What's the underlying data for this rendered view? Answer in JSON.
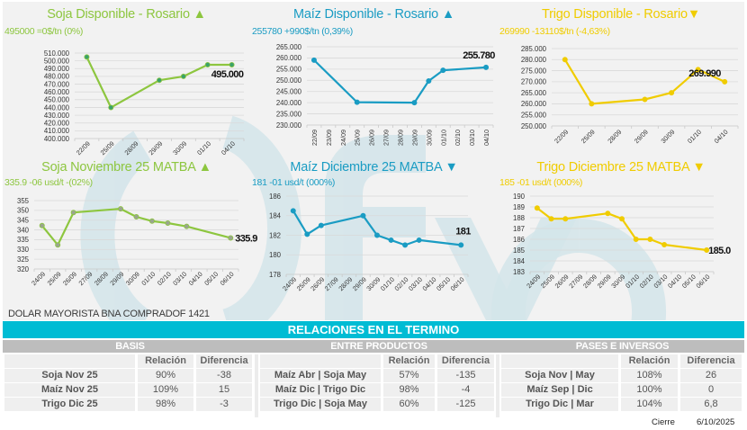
{
  "colors": {
    "soja": "#8dc63f",
    "maiz": "#1a9cc3",
    "trigo": "#f0cc00",
    "banner": "#00bcd4",
    "subheader": "#bdbdbd",
    "watermark": "#cfe3e8"
  },
  "watermark_text": "()fyo",
  "chart_data": [
    {
      "id": "soja-disp",
      "type": "line",
      "title": "Soja Disponible - Rosario ▲",
      "subtitle": "495000 =0$/tn (0%)",
      "color_key": "soja",
      "categories": [
        "22/09",
        "25/09",
        "28/09",
        "29/09",
        "30/09",
        "01/10",
        "04/10"
      ],
      "tick_labels": [
        "22/09",
        "25/09",
        "28/09",
        "29/09",
        "30/09",
        "01/10",
        "04/10"
      ],
      "values": [
        505000,
        440000,
        null,
        475000,
        480000,
        495000,
        495000
      ],
      "ylim": [
        400000,
        510000
      ],
      "yticks": [
        400000,
        410000,
        420000,
        430000,
        440000,
        450000,
        460000,
        470000,
        480000,
        490000,
        500000,
        510000
      ],
      "ytick_labels": [
        "400.000",
        "410.000",
        "420.000",
        "430.000",
        "440.000",
        "450.000",
        "460.000",
        "470.000",
        "480.000",
        "490.000",
        "500.000",
        "510.000"
      ],
      "data_label": "495.000",
      "xlabel": "",
      "ylabel": "",
      "grid": true
    },
    {
      "id": "maiz-disp",
      "type": "line",
      "title": "Maíz Disponible - Rosario ▲",
      "subtitle": "255780 +990$/tn (0,39%)",
      "color_key": "maiz",
      "categories": [
        "22/09",
        "23/09",
        "24/09",
        "25/09",
        "26/09",
        "27/09",
        "28/09",
        "29/09",
        "30/09",
        "01/10",
        "02/10",
        "03/10",
        "04/10"
      ],
      "tick_labels": [
        "22/09",
        "23/09",
        "24/09",
        "25/09",
        "26/09",
        "27/09",
        "28/09",
        "29/09",
        "30/09",
        "01/10",
        "02/10",
        "03/10",
        "04/10"
      ],
      "values": [
        259000,
        null,
        null,
        240200,
        null,
        null,
        null,
        240000,
        249700,
        254500,
        null,
        null,
        255780
      ],
      "ylim": [
        230000,
        265000
      ],
      "yticks": [
        230000,
        235000,
        240000,
        245000,
        250000,
        255000,
        260000,
        265000
      ],
      "ytick_labels": [
        "230.000",
        "235.000",
        "240.000",
        "245.000",
        "250.000",
        "255.000",
        "260.000",
        "265.000"
      ],
      "data_label": "255.780",
      "xlabel": "",
      "ylabel": "",
      "grid": true
    },
    {
      "id": "trigo-disp",
      "type": "line",
      "title": "Trigo Disponible - Rosario▼",
      "subtitle": "269990 -13110$/tn (-4,63%)",
      "color_key": "trigo",
      "categories": [
        "22/09",
        "25/09",
        "28/09",
        "29/09",
        "30/09",
        "01/10",
        "04/10"
      ],
      "tick_labels": [
        "22/09",
        "25/09",
        "28/09",
        "29/09",
        "30/09",
        "01/10",
        "04/10"
      ],
      "values": [
        280000,
        260000,
        null,
        262000,
        265000,
        275500,
        270000
      ],
      "ylim": [
        250000,
        285000
      ],
      "yticks": [
        250000,
        255000,
        260000,
        265000,
        270000,
        275000,
        280000,
        285000
      ],
      "ytick_labels": [
        "250.000",
        "255.000",
        "260.000",
        "265.000",
        "270.000",
        "275.000",
        "280.000",
        "285.000"
      ],
      "data_label": "269.990",
      "xlabel": "",
      "ylabel": "",
      "grid": true
    },
    {
      "id": "soja-matba",
      "type": "line",
      "title": "Soja Noviembre 25 MATBA ▲",
      "subtitle": "335.9 -06 usd/t -(02%)",
      "color_key": "soja",
      "categories": [
        "24/09",
        "25/09",
        "26/09",
        "27/09",
        "28/09",
        "29/09",
        "30/09",
        "01/10",
        "02/10",
        "03/10",
        "04/10",
        "05/10",
        "06/10"
      ],
      "tick_labels": [
        "24/09",
        "25/09",
        "26/09",
        "27/09",
        "28/09",
        "29/09",
        "30/09",
        "01/10",
        "02/10",
        "03/10",
        "04/10",
        "05/10",
        "06/10"
      ],
      "points": [
        {
          "x": 0,
          "y": 342.2
        },
        {
          "x": 1,
          "y": 332.3
        },
        {
          "x": 2,
          "y": 348.9
        },
        {
          "x": 5,
          "y": 350.8
        },
        {
          "x": 6,
          "y": 346.7
        },
        {
          "x": 7,
          "y": 344.5
        },
        {
          "x": 8,
          "y": 343.5
        },
        {
          "x": 9.2,
          "y": 341.8
        },
        {
          "x": 12,
          "y": 335.9
        }
      ],
      "ylim": [
        320,
        355
      ],
      "yticks": [
        320,
        325,
        330,
        335,
        340,
        345,
        350,
        355
      ],
      "ytick_labels": [
        "320",
        "325",
        "330",
        "335",
        "340",
        "345",
        "350",
        "355"
      ],
      "data_label": "335.9",
      "xlabel": "",
      "ylabel": "",
      "grid": true
    },
    {
      "id": "maiz-matba",
      "type": "line",
      "title": "Maíz Diciembre 25 MATBA ▼",
      "subtitle": "181 -01 usd/t (000%)",
      "color_key": "maiz",
      "categories": [
        "24/09",
        "25/09",
        "26/09",
        "27/09",
        "28/09",
        "29/09",
        "30/09",
        "01/10",
        "02/10",
        "03/10",
        "04/10",
        "05/10",
        "06/10"
      ],
      "tick_labels": [
        "24/09",
        "25/09",
        "26/09",
        "27/09",
        "28/09",
        "29/09",
        "30/09",
        "01/10",
        "02/10",
        "03/10",
        "04/10",
        "05/10",
        "06/10"
      ],
      "points": [
        {
          "x": 0,
          "y": 184.5
        },
        {
          "x": 1,
          "y": 182.1
        },
        {
          "x": 2,
          "y": 183.0
        },
        {
          "x": 5,
          "y": 184.0
        },
        {
          "x": 6,
          "y": 182.0
        },
        {
          "x": 7,
          "y": 181.5
        },
        {
          "x": 8,
          "y": 181.0
        },
        {
          "x": 9,
          "y": 181.5
        },
        {
          "x": 12,
          "y": 181.0
        }
      ],
      "ylim": [
        178,
        186
      ],
      "yticks": [
        178,
        180,
        182,
        184,
        186
      ],
      "ytick_labels": [
        "178",
        "180",
        "182",
        "184",
        "186"
      ],
      "data_label": "181",
      "xlabel": "",
      "ylabel": "",
      "grid": true
    },
    {
      "id": "trigo-matba",
      "type": "line",
      "title": "Trigo Diciembre 25 MATBA ▼",
      "subtitle": "185 -01 usd/t (000%)",
      "color_key": "trigo",
      "categories": [
        "24/09",
        "25/09",
        "26/09",
        "27/09",
        "28/09",
        "29/09",
        "30/09",
        "01/10",
        "02/10",
        "03/10",
        "04/10",
        "05/10",
        "06/10"
      ],
      "tick_labels": [
        "24/09",
        "25/09",
        "26/09",
        "27/09",
        "28/09",
        "29/09",
        "30/09",
        "01/10",
        "02/10",
        "03/10",
        "04/10",
        "05/10",
        "06/10"
      ],
      "points": [
        {
          "x": 0,
          "y": 188.9
        },
        {
          "x": 1,
          "y": 187.9
        },
        {
          "x": 2,
          "y": 187.9
        },
        {
          "x": 5,
          "y": 188.4
        },
        {
          "x": 6,
          "y": 187.9
        },
        {
          "x": 7,
          "y": 186.0
        },
        {
          "x": 8,
          "y": 186.0
        },
        {
          "x": 9,
          "y": 185.5
        },
        {
          "x": 12,
          "y": 185.0
        }
      ],
      "ylim": [
        183,
        190
      ],
      "yticks": [
        183,
        184,
        185,
        186,
        187,
        188,
        189,
        190
      ],
      "ytick_labels": [
        "183",
        "184",
        "185",
        "186",
        "187",
        "188",
        "189",
        "190"
      ],
      "data_label": "185.0",
      "xlabel": "",
      "ylabel": "",
      "grid": true
    }
  ],
  "dolar": "DOLAR MAYORISTA BNA COMPRADOF 1421",
  "relaciones": {
    "title": "RELACIONES EN EL TERMINO",
    "basis": {
      "title": "BASIS",
      "headers": [
        "",
        "Relación",
        "Diferencia"
      ],
      "rows": [
        [
          "Soja Nov 25",
          "90%",
          "-38"
        ],
        [
          "Maíz Nov 25",
          "109%",
          "15"
        ],
        [
          "Trigo Dic 25",
          "98%",
          "-3"
        ]
      ]
    },
    "entre_productos": {
      "title": "ENTRE PRODUCTOS",
      "headers": [
        "",
        "Relación",
        "Diferencia"
      ],
      "rows": [
        [
          "Maíz Abr | Soja May",
          "57%",
          "-135"
        ],
        [
          "Maíz Dic | Trigo Dic",
          "98%",
          "-4"
        ],
        [
          "Trigo Dic | Soja May",
          "60%",
          "-125"
        ]
      ]
    },
    "pases": {
      "title": "PASES E INVERSOS",
      "headers": [
        "",
        "Relación",
        "Diferencia"
      ],
      "rows": [
        [
          "Soja Nov | May",
          "108%",
          "26"
        ],
        [
          "Maíz Sep | Dic",
          "100%",
          "0"
        ],
        [
          "Trigo Dic | Mar",
          "104%",
          "6,8"
        ]
      ]
    }
  },
  "footer": {
    "cierre_label": "Cierre",
    "fecha": "6/10/2025"
  }
}
